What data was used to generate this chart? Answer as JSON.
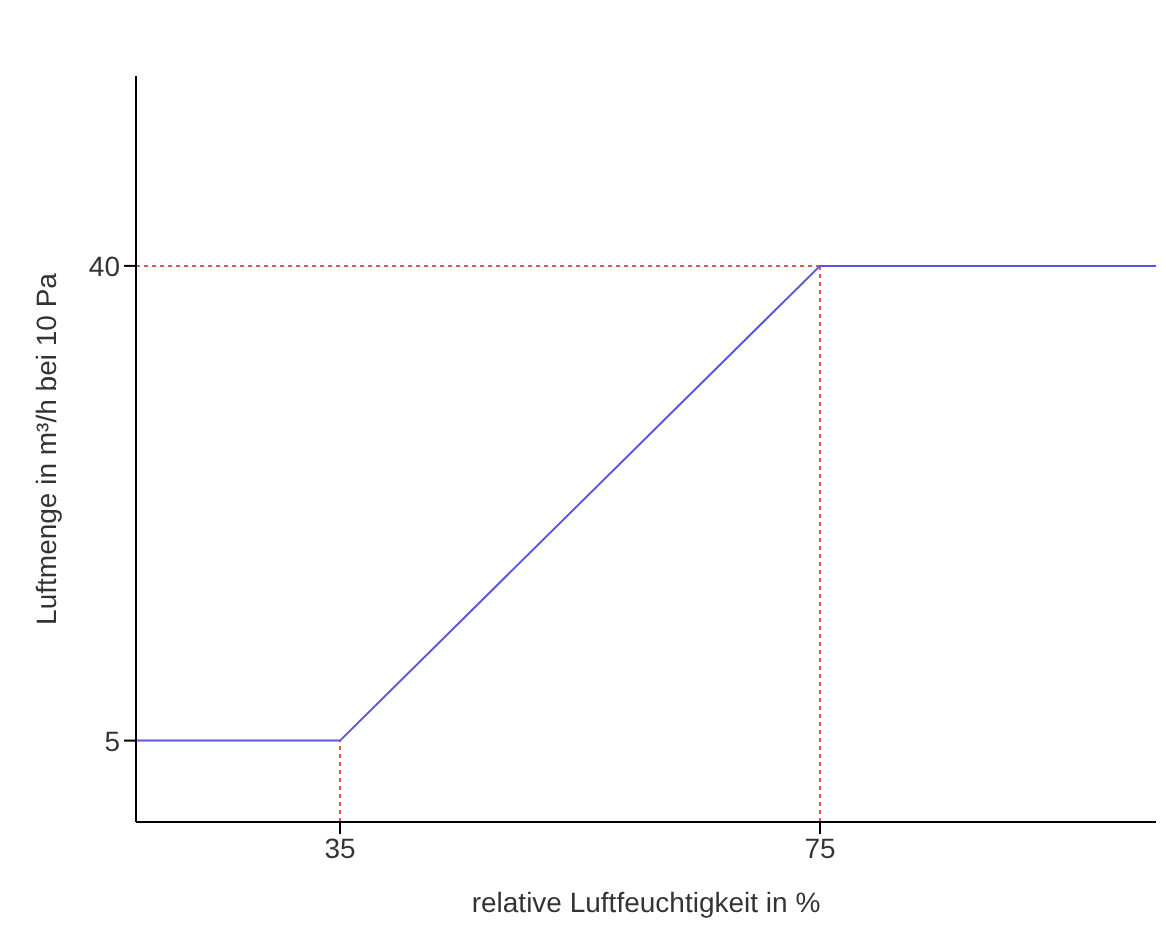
{
  "chart_data": {
    "type": "line",
    "xlabel": "relative Luftfeuchtigkeit in %",
    "ylabel": "Luftmenge in m³/h bei 10 Pa",
    "x": [
      18,
      35,
      75,
      103
    ],
    "series": [
      {
        "color": "#5555dd",
        "values": [
          5,
          5,
          40,
          40
        ]
      }
    ],
    "xlim": [
      18,
      103
    ],
    "ylim": [
      -1,
      54
    ],
    "xticks": [
      35,
      75
    ],
    "yticks": [
      5,
      40
    ],
    "ref_lines": [
      {
        "axis": "x",
        "value": 35,
        "color": "#e05555",
        "line_style": "dotted"
      },
      {
        "axis": "x",
        "value": 75,
        "color": "#e05555",
        "line_style": "dotted"
      },
      {
        "axis": "y",
        "value": 40,
        "color": "#e05555",
        "line_style": "dotted"
      }
    ],
    "grid": false,
    "legend": false,
    "marker": "none",
    "line_style": "solid"
  }
}
